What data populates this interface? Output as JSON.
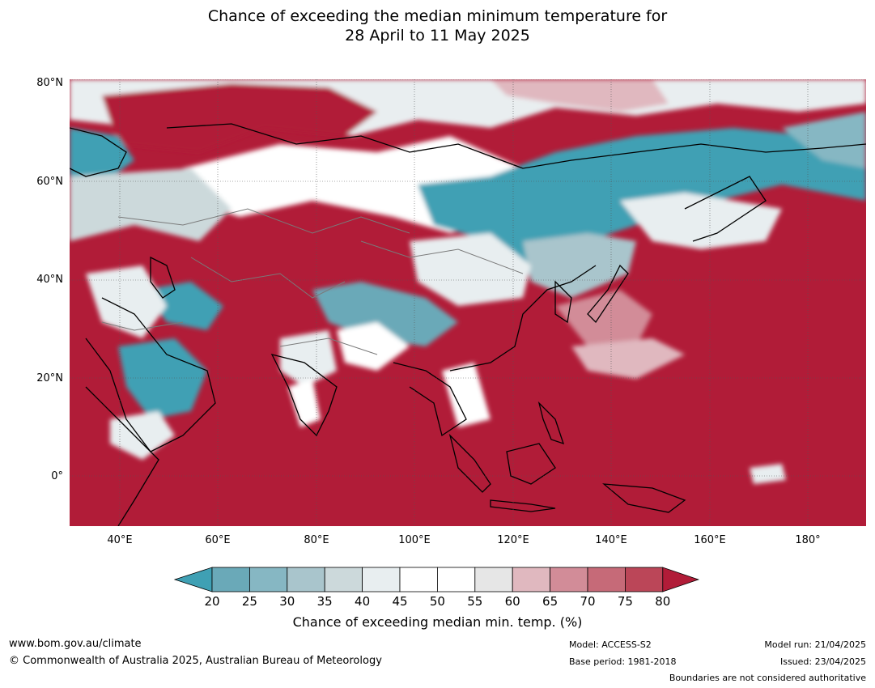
{
  "title": {
    "line1": "Chance of exceeding the median minimum temperature for",
    "line2": "28 April to 11 May 2025"
  },
  "map": {
    "latitude_labels": [
      "80°N",
      "60°N",
      "40°N",
      "20°N",
      "0°"
    ],
    "longitude_labels": [
      "40°E",
      "60°E",
      "80°E",
      "100°E",
      "120°E",
      "140°E",
      "160°E",
      "180°"
    ],
    "colors": {
      "very_low": "#3fa0b4",
      "very_high": "#b11c38",
      "coastline": "#000000",
      "border": "#7a7a7a",
      "grid": "#555555"
    }
  },
  "colorbar": {
    "ticks": [
      "20",
      "25",
      "30",
      "35",
      "40",
      "45",
      "50",
      "55",
      "60",
      "65",
      "70",
      "75",
      "80"
    ],
    "colors": [
      "#6aa9b8",
      "#86b7c3",
      "#a9c5cc",
      "#ccd9db",
      "#e8eef0",
      "#ffffff",
      "#ffffff",
      "#e6e6e6",
      "#e0b8bf",
      "#d28c98",
      "#c66a78",
      "#bb4658"
    ],
    "low_extend_color": "#3fa0b4",
    "high_extend_color": "#b11c38",
    "label": "Chance of exceeding median min. temp. (%)"
  },
  "footer": {
    "website": "www.bom.gov.au/climate",
    "copyright": "© Commonwealth of Australia 2025, Australian Bureau of Meteorology",
    "model": "Model: ACCESS-S2",
    "base_period": "Base period: 1981-2018",
    "model_run": "Model run: 21/04/2025",
    "issued": "Issued: 23/04/2025",
    "boundaries_note": "Boundaries are not considered authoritative"
  }
}
